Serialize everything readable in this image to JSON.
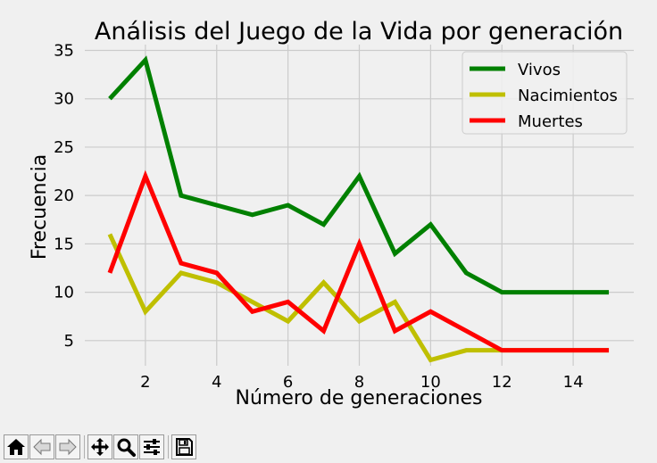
{
  "chart_data": {
    "type": "line",
    "title": "Análisis del Juego de la Vida por generación",
    "xlabel": "Número de generaciones",
    "ylabel": "Frecuencia",
    "x": [
      1,
      2,
      3,
      4,
      5,
      6,
      7,
      8,
      9,
      10,
      11,
      12,
      13,
      14,
      15
    ],
    "xlim": [
      0.3,
      15.7
    ],
    "ylim": [
      2.4,
      35.6
    ],
    "xticks": [
      2,
      4,
      6,
      8,
      10,
      12,
      14
    ],
    "yticks": [
      5,
      10,
      15,
      20,
      25,
      30,
      35
    ],
    "grid": true,
    "legend_position": "top-right",
    "series": [
      {
        "name": "Vivos",
        "color": "#008000",
        "values": [
          30,
          34,
          20,
          19,
          18,
          19,
          17,
          22,
          14,
          17,
          12,
          10,
          10,
          10,
          10
        ]
      },
      {
        "name": "Nacimientos",
        "color": "#bfbf00",
        "values": [
          16,
          8,
          12,
          11,
          9,
          7,
          11,
          7,
          9,
          3,
          4,
          4,
          4,
          4,
          4
        ]
      },
      {
        "name": "Muertes",
        "color": "#ff0000",
        "values": [
          12,
          22,
          13,
          12,
          8,
          9,
          6,
          15,
          6,
          8,
          6,
          4,
          4,
          4,
          4
        ]
      }
    ]
  },
  "toolbar": {
    "buttons": [
      {
        "name": "home-button",
        "icon": "home-icon"
      },
      {
        "name": "back-button",
        "icon": "arrow-left-icon"
      },
      {
        "name": "forward-button",
        "icon": "arrow-right-icon"
      },
      {
        "name": "pan-button",
        "icon": "move-icon"
      },
      {
        "name": "zoom-button",
        "icon": "magnifier-icon"
      },
      {
        "name": "configure-subplots-button",
        "icon": "sliders-icon"
      },
      {
        "name": "save-button",
        "icon": "floppy-disk-icon"
      }
    ]
  }
}
